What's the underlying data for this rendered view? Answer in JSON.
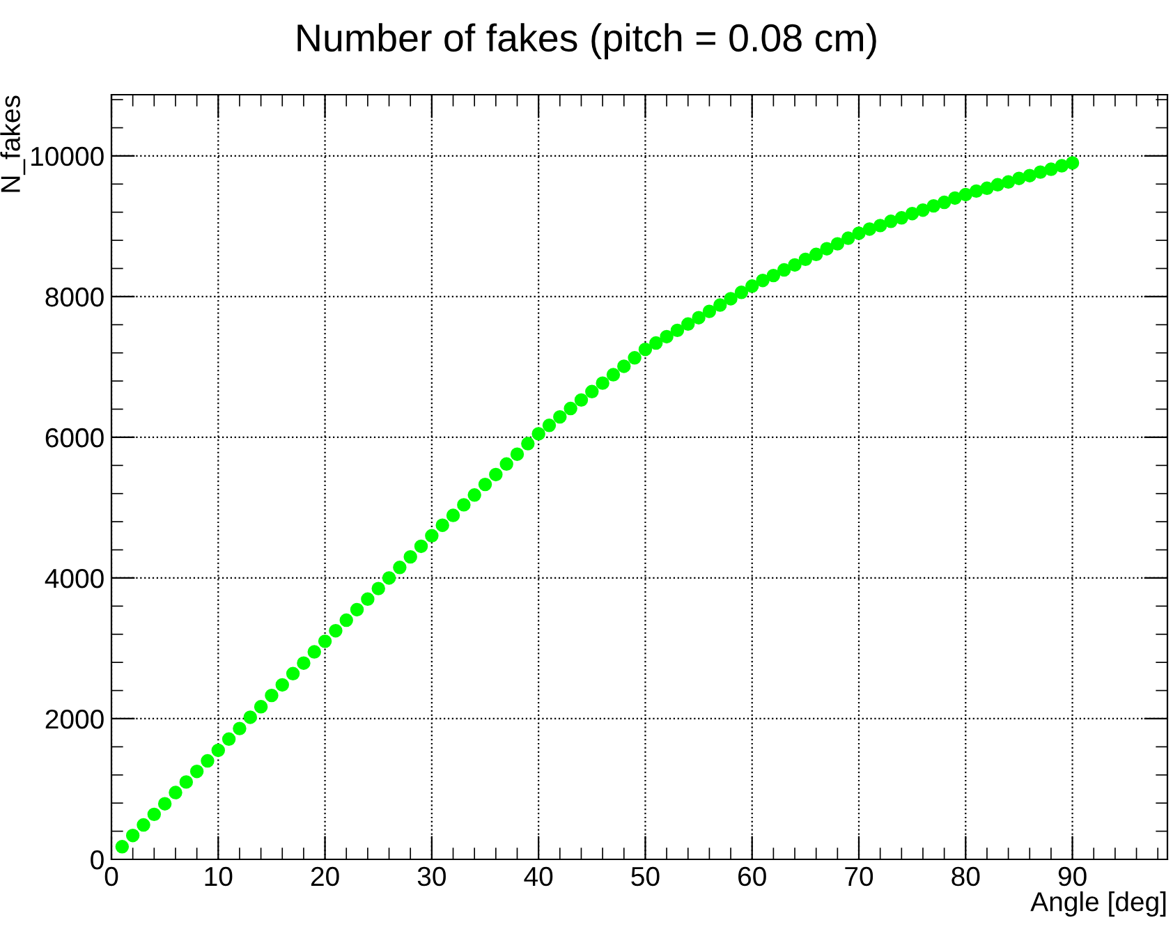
{
  "chart_data": {
    "type": "scatter",
    "title": "Number of fakes (pitch = 0.08 cm)",
    "xlabel": "Angle [deg]",
    "ylabel": "N_fakes",
    "x": [
      1,
      2,
      3,
      4,
      5,
      6,
      7,
      8,
      9,
      10,
      11,
      12,
      13,
      14,
      15,
      16,
      17,
      18,
      19,
      20,
      21,
      22,
      23,
      24,
      25,
      26,
      27,
      28,
      29,
      30,
      31,
      32,
      33,
      34,
      35,
      36,
      37,
      38,
      39,
      40,
      41,
      42,
      43,
      44,
      45,
      46,
      47,
      48,
      49,
      50,
      51,
      52,
      53,
      54,
      55,
      56,
      57,
      58,
      59,
      60,
      61,
      62,
      63,
      64,
      65,
      66,
      67,
      68,
      69,
      70,
      71,
      72,
      73,
      74,
      75,
      76,
      77,
      78,
      79,
      80,
      81,
      82,
      83,
      84,
      85,
      86,
      87,
      88,
      89,
      90
    ],
    "series": [
      {
        "color": "#00ff00",
        "values": [
          180,
          340,
          490,
          640,
          790,
          950,
          1100,
          1250,
          1400,
          1550,
          1710,
          1860,
          2020,
          2170,
          2330,
          2480,
          2640,
          2790,
          2950,
          3100,
          3250,
          3400,
          3550,
          3700,
          3850,
          4000,
          4150,
          4300,
          4450,
          4600,
          4750,
          4890,
          5040,
          5180,
          5330,
          5470,
          5620,
          5760,
          5910,
          6050,
          6170,
          6290,
          6410,
          6530,
          6650,
          6770,
          6890,
          7010,
          7130,
          7250,
          7340,
          7430,
          7520,
          7610,
          7700,
          7790,
          7880,
          7970,
          8060,
          8150,
          8230,
          8300,
          8380,
          8450,
          8530,
          8600,
          8680,
          8750,
          8830,
          8900,
          8960,
          9010,
          9070,
          9120,
          9180,
          9230,
          9290,
          9340,
          9400,
          9450,
          9500,
          9540,
          9590,
          9630,
          9680,
          9720,
          9770,
          9810,
          9860,
          9900
        ]
      }
    ],
    "xlim": [
      0,
      98.9
    ],
    "ylim": [
      0,
      10870
    ],
    "xticks": [
      0,
      10,
      20,
      30,
      40,
      50,
      60,
      70,
      80,
      90
    ],
    "yticks": [
      0,
      2000,
      4000,
      6000,
      8000,
      10000
    ],
    "grid": true,
    "marker": "circle",
    "legend": false
  }
}
